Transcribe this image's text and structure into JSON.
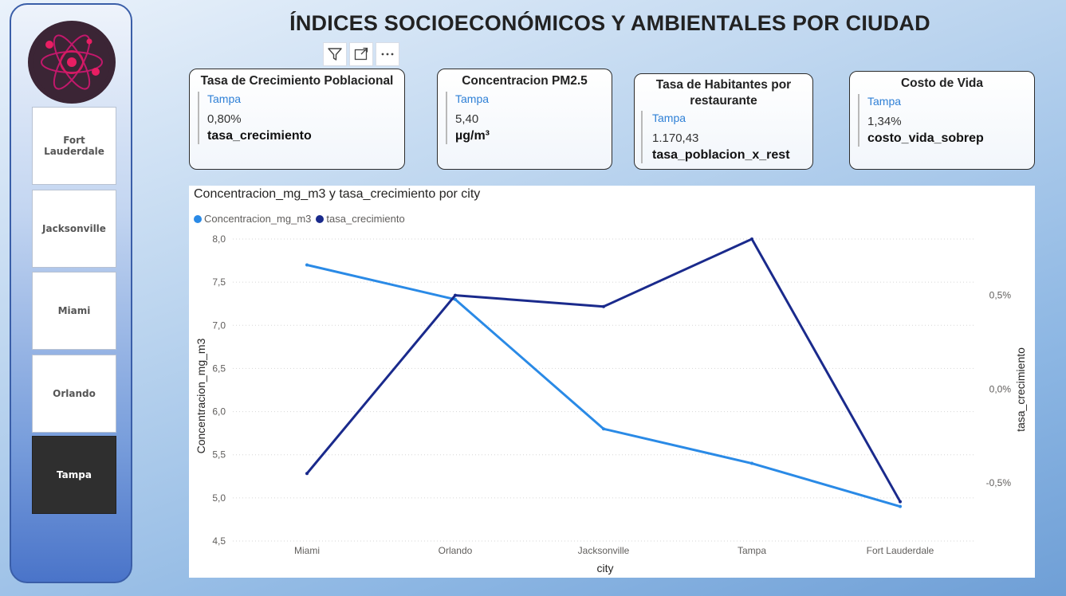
{
  "page_title": "ÍNDICES SOCIOECONÓMICOS Y AMBIENTALES POR CIUDAD",
  "sidebar": {
    "logo_icon": "atom-icon",
    "cities": [
      {
        "label": "Fort Lauderdale",
        "selected": false
      },
      {
        "label": "Jacksonville",
        "selected": false
      },
      {
        "label": "Miami",
        "selected": false
      },
      {
        "label": "Orlando",
        "selected": false
      },
      {
        "label": "Tampa",
        "selected": true
      }
    ]
  },
  "toolbar": {
    "filter_icon": "filter-icon",
    "focus_icon": "focus-mode-icon",
    "more_icon": "more-options-icon"
  },
  "cards": [
    {
      "title": "Tasa de Crecimiento Poblacional",
      "city": "Tampa",
      "value": "0,80%",
      "measure": "tasa_crecimiento"
    },
    {
      "title": "Concentracion PM2.5",
      "city": "Tampa",
      "value": "5,40",
      "measure": "µg/m³"
    },
    {
      "title": "Tasa de Habitantes por restaurante",
      "city": "Tampa",
      "value": "1.170,43",
      "measure": "tasa_poblacion_x_rest"
    },
    {
      "title": "Costo de Vida",
      "city": "Tampa",
      "value": "1,34%",
      "measure": "costo_vida_sobrep"
    }
  ],
  "chart": {
    "title": "Concentracion_mg_m3 y tasa_crecimiento por city",
    "legend": [
      "Concentracion_mg_m3",
      "tasa_crecimiento"
    ],
    "xlabel": "city",
    "ylabel_left": "Concentracion_mg_m3",
    "ylabel_right": "tasa_crecimiento",
    "colors": {
      "Concentracion_mg_m3": "#2a8ae6",
      "tasa_crecimiento": "#1a2a8c"
    }
  },
  "chart_data": {
    "type": "line",
    "categories": [
      "Miami",
      "Orlando",
      "Jacksonville",
      "Tampa",
      "Fort Lauderdale"
    ],
    "series": [
      {
        "name": "Concentracion_mg_m3",
        "axis": "left",
        "values": [
          7.7,
          7.3,
          5.8,
          5.4,
          4.9
        ]
      },
      {
        "name": "tasa_crecimiento",
        "axis": "right",
        "values": [
          -0.45,
          0.5,
          0.44,
          0.8,
          -0.6
        ]
      }
    ],
    "y_left": {
      "ylim": [
        4.5,
        8.0
      ],
      "ticks": [
        "4,5",
        "5,0",
        "5,5",
        "6,0",
        "6,5",
        "7,0",
        "7,5",
        "8,0"
      ],
      "tick_values": [
        4.5,
        5.0,
        5.5,
        6.0,
        6.5,
        7.0,
        7.5,
        8.0
      ]
    },
    "y_right": {
      "ylim": [
        -0.81,
        0.8
      ],
      "ticks": [
        "-0,5%",
        "0,0%",
        "0,5%"
      ],
      "tick_values": [
        -0.5,
        0.0,
        0.5
      ]
    },
    "grid": true,
    "legend_position": "top-left"
  }
}
